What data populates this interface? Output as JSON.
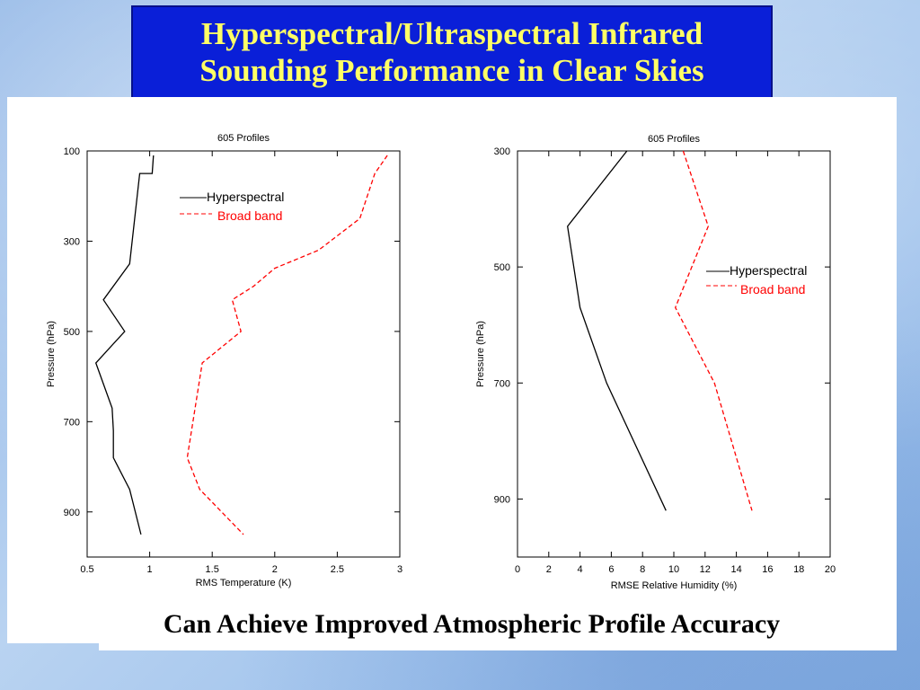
{
  "slide": {
    "title_line1": "Hyperspectral/Ultraspectral Infrared",
    "title_line2": "Sounding Performance in Clear Skies",
    "caption": "Can Achieve Improved Atmospheric Profile Accuracy",
    "colors": {
      "title_bg": "#0a1fd8",
      "title_text": "#ffff66",
      "hyperspectral": "#000000",
      "broad_band": "#ff0000"
    }
  },
  "chart_data": [
    {
      "type": "line",
      "title": "605 Profiles",
      "xlabel": "RMS Temperature (K)",
      "ylabel": "Pressure (hPa)",
      "xlim": [
        0.5,
        3
      ],
      "ylim": [
        1000,
        100
      ],
      "y_inverted": true,
      "xticks": [
        "0.5",
        "1",
        "1.5",
        "2",
        "2.5",
        "3"
      ],
      "yticks": [
        "100",
        "300",
        "500",
        "700",
        "900"
      ],
      "legend": [
        "Hyperspectral",
        "Broad band"
      ],
      "legend_position": "top-center",
      "series": [
        {
          "name": "Hyperspectral",
          "style": "solid",
          "color": "#000000",
          "x": [
            1.03,
            1.02,
            0.92,
            0.84,
            0.63,
            0.8,
            0.57,
            0.7,
            0.71,
            0.71,
            0.84,
            0.93
          ],
          "y": [
            110,
            150,
            150,
            350,
            430,
            500,
            570,
            670,
            720,
            780,
            850,
            950
          ]
        },
        {
          "name": "Broad band",
          "style": "dashed",
          "color": "#ff0000",
          "x": [
            2.9,
            2.8,
            2.68,
            2.35,
            2.0,
            1.83,
            1.66,
            1.73,
            1.42,
            1.3,
            1.4,
            1.75
          ],
          "y": [
            110,
            150,
            250,
            320,
            360,
            400,
            430,
            500,
            570,
            780,
            850,
            950
          ]
        }
      ]
    },
    {
      "type": "line",
      "title": "605 Profiles",
      "xlabel": "RMSE Relative Humidity (%)",
      "ylabel": "Pressure (hPa)",
      "xlim": [
        0,
        20
      ],
      "ylim": [
        1000,
        300
      ],
      "y_inverted": true,
      "xticks": [
        "0",
        "2",
        "4",
        "6",
        "8",
        "10",
        "12",
        "14",
        "16",
        "18",
        "20"
      ],
      "yticks": [
        "300",
        "500",
        "700",
        "900"
      ],
      "legend": [
        "Hyperspectral",
        "Broad band"
      ],
      "legend_position": "right",
      "series": [
        {
          "name": "Hyperspectral",
          "style": "solid",
          "color": "#000000",
          "x": [
            7.0,
            3.2,
            4.0,
            5.7,
            9.5
          ],
          "y": [
            300,
            430,
            570,
            700,
            920
          ]
        },
        {
          "name": "Broad band",
          "style": "dashed",
          "color": "#ff0000",
          "x": [
            10.6,
            12.2,
            10.1,
            12.6,
            15.0
          ],
          "y": [
            300,
            430,
            570,
            700,
            920
          ]
        }
      ]
    }
  ]
}
